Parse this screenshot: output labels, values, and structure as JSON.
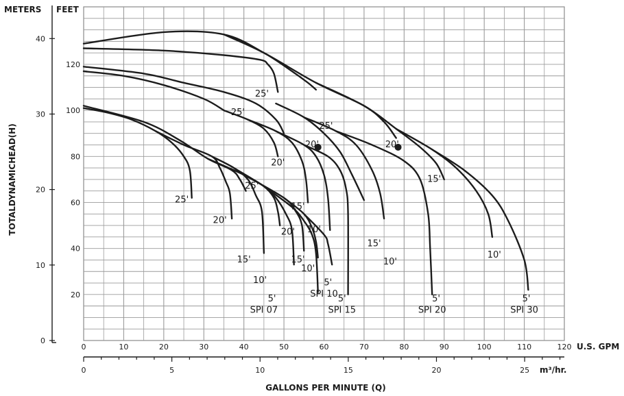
{
  "chart_data": {
    "type": "line",
    "title": "",
    "xlabel": "GALLONS PER MINUTE (Q)",
    "ylabel": "TOTALDYNAMICHEAD(H)",
    "x_axes": {
      "gpm": {
        "unit_label": "U.S. GPM",
        "range": [
          0,
          120
        ],
        "ticks": [
          0,
          10,
          20,
          30,
          40,
          50,
          60,
          70,
          80,
          90,
          100,
          110,
          120
        ]
      },
      "m3hr": {
        "unit_label": "m³/hr.",
        "range": [
          0,
          27.25
        ],
        "ticks": [
          0,
          5,
          10,
          15,
          20,
          25
        ]
      }
    },
    "y_axes": {
      "feet": {
        "header": "FEET",
        "range": [
          0,
          145
        ],
        "ticks": [
          20,
          40,
          60,
          80,
          100,
          120
        ]
      },
      "meters": {
        "header": "METERS",
        "range": [
          0,
          44.2
        ],
        "ticks": [
          0,
          10,
          20,
          30,
          40
        ]
      }
    },
    "grid": true,
    "legend": "none",
    "series": [
      {
        "name": "SPI 07 / 25'",
        "points": [
          [
            0,
            101
          ],
          [
            6,
            99
          ],
          [
            12,
            96
          ],
          [
            18,
            91
          ],
          [
            22,
            86
          ],
          [
            25,
            80
          ],
          [
            26.5,
            74
          ],
          [
            27,
            62
          ]
        ]
      },
      {
        "name": "SPI 07 / 20'",
        "points": [
          [
            18,
            91
          ],
          [
            25,
            85
          ],
          [
            32,
            80
          ],
          [
            34,
            75
          ],
          [
            35.5,
            69
          ],
          [
            36.5,
            64
          ],
          [
            37,
            53
          ]
        ]
      },
      {
        "name": "SPI 07 / 15'",
        "points": [
          [
            32,
            80
          ],
          [
            37.5,
            75
          ],
          [
            41,
            70
          ],
          [
            43,
            63
          ],
          [
            44.5,
            56
          ],
          [
            45,
            38
          ]
        ]
      },
      {
        "name": "SPI 07 / 10'",
        "points": [
          [
            37.5,
            75
          ],
          [
            45,
            67
          ],
          [
            48,
            62
          ],
          [
            50.5,
            55
          ],
          [
            52,
            48
          ],
          [
            52.5,
            33
          ]
        ]
      },
      {
        "name": "SPI 07 / 5'",
        "points": [
          [
            45,
            67
          ],
          [
            52,
            58
          ],
          [
            55,
            52
          ],
          [
            57,
            46
          ],
          [
            58,
            38
          ],
          [
            58.5,
            21
          ]
        ]
      },
      {
        "name": "SPI 10 / 25'",
        "points": [
          [
            0,
            102
          ],
          [
            15,
            95
          ],
          [
            24,
            87
          ],
          [
            31,
            79
          ],
          [
            37,
            74
          ],
          [
            39,
            70
          ],
          [
            40.5,
            65
          ]
        ]
      },
      {
        "name": "SPI 10 / 20'",
        "points": [
          [
            31,
            79
          ],
          [
            40,
            72
          ],
          [
            45,
            67
          ],
          [
            47.5,
            62
          ],
          [
            48.5,
            56
          ],
          [
            49,
            50
          ]
        ]
      },
      {
        "name": "SPI 10 / 15'",
        "points": [
          [
            40,
            72
          ],
          [
            50,
            62
          ],
          [
            53,
            56
          ],
          [
            54.5,
            50
          ],
          [
            55,
            39
          ]
        ]
      },
      {
        "name": "SPI 10 / 10'",
        "points": [
          [
            50,
            62
          ],
          [
            55,
            55
          ],
          [
            57,
            49
          ],
          [
            58,
            43
          ],
          [
            58.5,
            36
          ]
        ]
      },
      {
        "name": "SPI 10 / 5'",
        "points": [
          [
            55,
            55
          ],
          [
            60,
            46
          ],
          [
            61,
            42
          ],
          [
            62,
            33
          ]
        ]
      },
      {
        "name": "SPI 15 / 25'",
        "points": [
          [
            0,
            117
          ],
          [
            10,
            115
          ],
          [
            20,
            111
          ],
          [
            30,
            105
          ],
          [
            35,
            100
          ]
        ]
      },
      {
        "name": "SPI 15 / 20'",
        "points": [
          [
            35,
            100
          ],
          [
            41,
            96
          ],
          [
            45,
            92
          ],
          [
            47.5,
            86
          ],
          [
            48.5,
            80
          ]
        ]
      },
      {
        "name": "SPI 15 / 15'",
        "points": [
          [
            41,
            96
          ],
          [
            48,
            91
          ],
          [
            52,
            86
          ],
          [
            54.5,
            78
          ],
          [
            55.5,
            70
          ],
          [
            56,
            60
          ]
        ]
      },
      {
        "name": "SPI 15 / 10'",
        "points": [
          [
            48,
            91
          ],
          [
            55,
            85
          ],
          [
            58,
            80
          ],
          [
            60,
            72
          ],
          [
            61,
            62
          ],
          [
            61.5,
            48
          ]
        ]
      },
      {
        "name": "SPI 15 / 5'",
        "points": [
          [
            55,
            85
          ],
          [
            61,
            80
          ],
          [
            64,
            74
          ],
          [
            65.5,
            66
          ],
          [
            66,
            55
          ],
          [
            66,
            20
          ]
        ]
      },
      {
        "name": "SPI 20 / 25'",
        "points": [
          [
            0,
            119
          ],
          [
            15,
            116
          ],
          [
            25,
            112
          ],
          [
            35,
            108
          ],
          [
            43,
            103
          ],
          [
            48,
            96
          ],
          [
            50,
            90
          ]
        ]
      },
      {
        "name": "SPI 20 / 20'",
        "points": [
          [
            0,
            127
          ],
          [
            20,
            126
          ],
          [
            35,
            124
          ],
          [
            44,
            122
          ],
          [
            46,
            120
          ],
          [
            47.5,
            116
          ],
          [
            48.5,
            108
          ]
        ]
      },
      {
        "name": "SPI 20 / 15'",
        "points": [
          [
            48,
            103
          ],
          [
            55,
            97
          ],
          [
            60,
            90
          ],
          [
            64,
            82
          ],
          [
            67,
            72
          ],
          [
            70,
            61
          ]
        ]
      },
      {
        "name": "SPI 20 / 10'",
        "points": [
          [
            55,
            97
          ],
          [
            63,
            91
          ],
          [
            68,
            85
          ],
          [
            72,
            74
          ],
          [
            74,
            64
          ],
          [
            75,
            53
          ]
        ]
      },
      {
        "name": "SPI 20 / 5'",
        "points": [
          [
            63,
            91
          ],
          [
            72,
            85
          ],
          [
            80,
            78
          ],
          [
            84,
            70
          ],
          [
            86,
            55
          ],
          [
            86.5,
            40
          ],
          [
            87,
            20
          ]
        ]
      },
      {
        "name": "SPI 30 / 25'",
        "points": [
          [
            0,
            129
          ],
          [
            20,
            134
          ],
          [
            35,
            133
          ],
          [
            45,
            125
          ],
          [
            52,
            117
          ],
          [
            56,
            112
          ],
          [
            58,
            109
          ]
        ]
      },
      {
        "name": "SPI 30 / 20'",
        "points": [
          [
            35,
            133
          ],
          [
            45,
            125
          ],
          [
            58,
            112
          ],
          [
            70,
            102
          ],
          [
            75,
            95
          ],
          [
            78,
            88
          ]
        ]
      },
      {
        "name": "SPI 30 / 15'",
        "points": [
          [
            58,
            112
          ],
          [
            70,
            102
          ],
          [
            78,
            92
          ],
          [
            84,
            84
          ],
          [
            88,
            77
          ],
          [
            90,
            70
          ]
        ]
      },
      {
        "name": "SPI 30 / 10'",
        "points": [
          [
            78,
            92
          ],
          [
            87,
            83
          ],
          [
            93,
            75
          ],
          [
            98,
            65
          ],
          [
            101,
            55
          ],
          [
            102,
            45
          ]
        ]
      },
      {
        "name": "SPI 30 / 5'",
        "points": [
          [
            87,
            83
          ],
          [
            95,
            74
          ],
          [
            102,
            63
          ],
          [
            106,
            52
          ],
          [
            110,
            35
          ],
          [
            111,
            22
          ]
        ]
      }
    ],
    "marker_points": [
      [
        58.5,
        84
      ],
      [
        78.5,
        84
      ]
    ],
    "annotations": [
      {
        "text": "25'",
        "x": 24.5,
        "y": 60
      },
      {
        "text": "20'",
        "x": 34,
        "y": 51
      },
      {
        "text": "15'",
        "x": 40,
        "y": 34
      },
      {
        "text": "10'",
        "x": 44,
        "y": 25
      },
      {
        "text": "5'",
        "x": 47,
        "y": 17
      },
      {
        "text": "SPI 07",
        "x": 45,
        "y": 12
      },
      {
        "text": "25'",
        "x": 42,
        "y": 66
      },
      {
        "text": "20'",
        "x": 51,
        "y": 46
      },
      {
        "text": "15'",
        "x": 53.5,
        "y": 34
      },
      {
        "text": "10'",
        "x": 56,
        "y": 30
      },
      {
        "text": "5'",
        "x": 61,
        "y": 24
      },
      {
        "text": "SPI 10",
        "x": 60,
        "y": 19
      },
      {
        "text": "25'",
        "x": 38.5,
        "y": 98
      },
      {
        "text": "20'",
        "x": 48.5,
        "y": 76
      },
      {
        "text": "15'",
        "x": 53.5,
        "y": 57
      },
      {
        "text": "10'",
        "x": 57.5,
        "y": 47
      },
      {
        "text": "5'",
        "x": 64.5,
        "y": 17
      },
      {
        "text": "SPI 15",
        "x": 64.5,
        "y": 12
      },
      {
        "text": "25'",
        "x": 44.5,
        "y": 106
      },
      {
        "text": "20'",
        "x": 57,
        "y": 84
      },
      {
        "text": "15'",
        "x": 72.5,
        "y": 41
      },
      {
        "text": "10'",
        "x": 76.5,
        "y": 33
      },
      {
        "text": "5'",
        "x": 88,
        "y": 17
      },
      {
        "text": "SPI 20",
        "x": 87,
        "y": 12
      },
      {
        "text": "25'",
        "x": 60.5,
        "y": 92
      },
      {
        "text": "20'",
        "x": 77,
        "y": 84
      },
      {
        "text": "15'",
        "x": 87.5,
        "y": 69
      },
      {
        "text": "10'",
        "x": 102.5,
        "y": 36
      },
      {
        "text": "5'",
        "x": 110.5,
        "y": 17
      },
      {
        "text": "SPI 30",
        "x": 110,
        "y": 12
      }
    ]
  }
}
